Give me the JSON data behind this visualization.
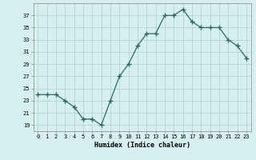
{
  "x": [
    0,
    1,
    2,
    3,
    4,
    5,
    6,
    7,
    8,
    9,
    10,
    11,
    12,
    13,
    14,
    15,
    16,
    17,
    18,
    19,
    20,
    21,
    22,
    23
  ],
  "y": [
    24,
    24,
    24,
    23,
    22,
    20,
    20,
    19,
    23,
    27,
    29,
    32,
    34,
    34,
    37,
    37,
    38,
    36,
    35,
    35,
    35,
    33,
    32,
    30
  ],
  "xlabel": "Humidex (Indice chaleur)",
  "ylim": [
    18,
    39
  ],
  "yticks": [
    19,
    21,
    23,
    25,
    27,
    29,
    31,
    33,
    35,
    37
  ],
  "xticks": [
    0,
    1,
    2,
    3,
    4,
    5,
    6,
    7,
    8,
    9,
    10,
    11,
    12,
    13,
    14,
    15,
    16,
    17,
    18,
    19,
    20,
    21,
    22,
    23
  ],
  "line_color": "#2e6b5e",
  "marker_color": "#2e6b5e",
  "bg_color": "#d6f0f0",
  "grid_color": "#b0d8d0"
}
